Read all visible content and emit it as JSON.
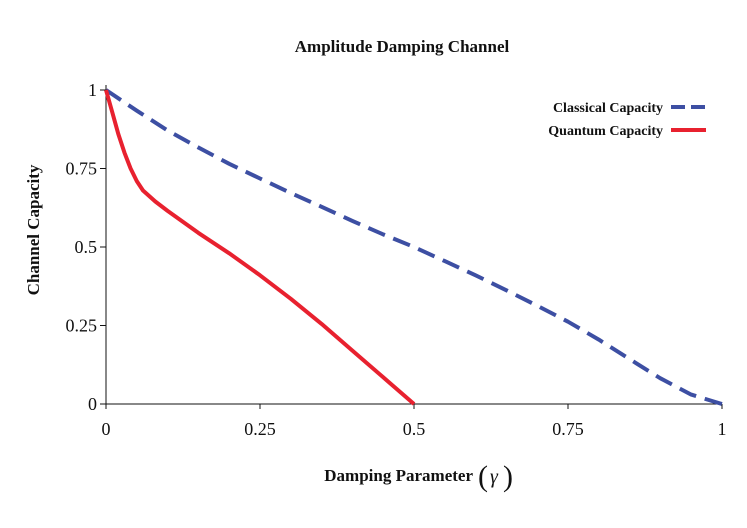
{
  "chart_data": {
    "type": "line",
    "title": "Amplitude Damping Channel",
    "xlabel": "Damping Parameter",
    "xlabel_symbol": "γ",
    "ylabel": "Channel Capacity",
    "xlim": [
      0,
      1
    ],
    "ylim": [
      0,
      1
    ],
    "x_ticks": [
      0,
      0.25,
      0.5,
      0.75,
      1
    ],
    "x_tick_labels": [
      "0",
      "0.25",
      "0.5",
      "0.75",
      "1"
    ],
    "y_ticks": [
      0,
      0.25,
      0.5,
      0.75,
      1
    ],
    "y_tick_labels": [
      "0",
      "0.25",
      "0.5",
      "0.75",
      "1"
    ],
    "grid": false,
    "legend_position": "top-right",
    "series": [
      {
        "name": "Classical Capacity",
        "color": "#3d4fa3",
        "dash": "dashed",
        "x": [
          0,
          0.05,
          0.1,
          0.15,
          0.2,
          0.25,
          0.3,
          0.35,
          0.4,
          0.45,
          0.5,
          0.55,
          0.6,
          0.65,
          0.7,
          0.75,
          0.8,
          0.85,
          0.9,
          0.95,
          1.0
        ],
        "y": [
          1.0,
          0.934,
          0.871,
          0.817,
          0.765,
          0.718,
          0.672,
          0.628,
          0.583,
          0.54,
          0.5,
          0.455,
          0.41,
          0.362,
          0.313,
          0.262,
          0.205,
          0.143,
          0.082,
          0.03,
          0.0
        ]
      },
      {
        "name": "Quantum Capacity",
        "color": "#e8212f",
        "dash": "solid",
        "x": [
          0,
          0.01,
          0.02,
          0.03,
          0.04,
          0.05,
          0.06,
          0.08,
          0.1,
          0.15,
          0.2,
          0.25,
          0.3,
          0.35,
          0.4,
          0.45,
          0.5
        ],
        "y": [
          1.0,
          0.93,
          0.86,
          0.8,
          0.75,
          0.71,
          0.68,
          0.645,
          0.615,
          0.545,
          0.48,
          0.41,
          0.335,
          0.255,
          0.17,
          0.085,
          0.0
        ]
      }
    ]
  }
}
